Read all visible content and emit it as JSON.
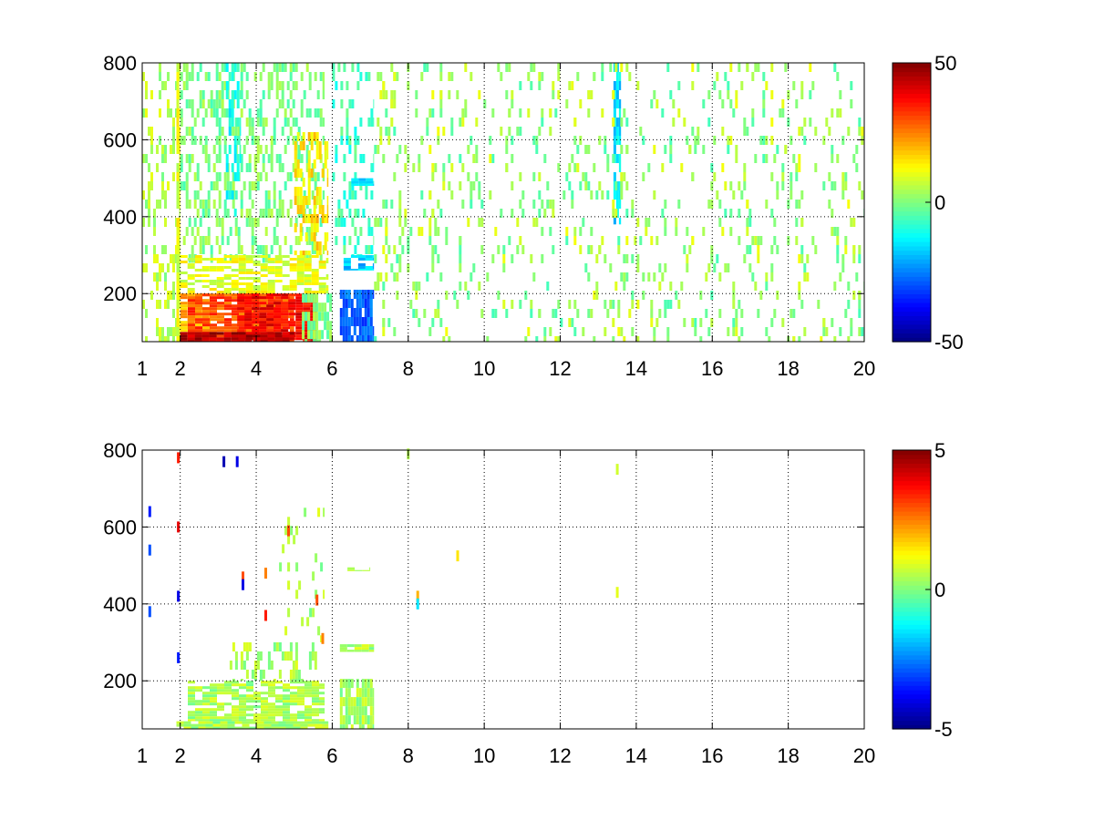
{
  "chart_data": [
    {
      "type": "heatmap",
      "title": "",
      "xlabel": "",
      "ylabel": "",
      "xlim": [
        1,
        20
      ],
      "ylim": [
        75,
        800
      ],
      "x_ticks": [
        1,
        2,
        4,
        6,
        8,
        10,
        12,
        14,
        16,
        18,
        20
      ],
      "y_ticks": [
        200,
        400,
        600,
        800
      ],
      "grid": true,
      "grid_style": "dotted",
      "colormap": "jet",
      "color_limits": [
        -50,
        50
      ],
      "colorbar_ticks": [
        -50,
        0,
        50
      ],
      "colorbar_position": "right",
      "background": "#ffffff",
      "regions": [
        {
          "x": [
            1.0,
            1.9
          ],
          "y": [
            75,
            800
          ],
          "value": 5,
          "density": 0.25,
          "stripe": "vertical"
        },
        {
          "x": [
            1.9,
            2.0
          ],
          "y": [
            75,
            800
          ],
          "value": 10,
          "density": 0.9,
          "stripe": "vertical"
        },
        {
          "x": [
            2.0,
            5.8
          ],
          "y": [
            280,
            800
          ],
          "value": 0,
          "density": 0.35,
          "stripe": "vertical"
        },
        {
          "x": [
            3.2,
            3.6
          ],
          "y": [
            400,
            800
          ],
          "value": -10,
          "density": 0.45,
          "stripe": "vertical"
        },
        {
          "x": [
            5.0,
            5.9
          ],
          "y": [
            300,
            620
          ],
          "value": 15,
          "density": 0.45,
          "stripe": "vertical"
        },
        {
          "x": [
            2.0,
            5.9
          ],
          "y": [
            200,
            300
          ],
          "value": 10,
          "density": 0.6,
          "stripe": "horizontal"
        },
        {
          "x": [
            2.0,
            2.8
          ],
          "y": [
            75,
            200
          ],
          "value": 20,
          "density": 0.8,
          "stripe": "horizontal"
        },
        {
          "x": [
            2.2,
            5.0
          ],
          "y": [
            75,
            200
          ],
          "value": 30,
          "density": 0.85,
          "stripe": "horizontal"
        },
        {
          "x": [
            3.5,
            5.6
          ],
          "y": [
            75,
            200
          ],
          "value": 38,
          "density": 0.8,
          "stripe": "horizontal"
        },
        {
          "x": [
            2.0,
            5.0
          ],
          "y": [
            75,
            100
          ],
          "value": 45,
          "density": 0.9,
          "stripe": "horizontal"
        },
        {
          "x": [
            5.2,
            6.0
          ],
          "y": [
            75,
            200
          ],
          "value": 0,
          "density": 0.7,
          "stripe": "vertical"
        },
        {
          "x": [
            6.2,
            7.1
          ],
          "y": [
            75,
            210
          ],
          "value": -28,
          "density": 0.85,
          "stripe": "vertical"
        },
        {
          "x": [
            6.3,
            7.1
          ],
          "y": [
            260,
            300
          ],
          "value": -18,
          "density": 0.8,
          "stripe": "horizontal"
        },
        {
          "x": [
            6.0,
            7.1
          ],
          "y": [
            300,
            800
          ],
          "value": -6,
          "density": 0.25,
          "stripe": "vertical"
        },
        {
          "x": [
            6.5,
            7.1
          ],
          "y": [
            480,
            500
          ],
          "value": -14,
          "density": 0.8,
          "stripe": "horizontal"
        },
        {
          "x": [
            13.4,
            13.6
          ],
          "y": [
            380,
            800
          ],
          "value": -15,
          "density": 0.7,
          "stripe": "vertical"
        },
        {
          "x": [
            7.1,
            20.0
          ],
          "y": [
            75,
            800
          ],
          "value": 0,
          "density": 0.1,
          "stripe": "vertical"
        },
        {
          "x": [
            7.1,
            20.0
          ],
          "y": [
            75,
            800
          ],
          "value": 6,
          "density": 0.05,
          "stripe": "vertical"
        }
      ]
    },
    {
      "type": "heatmap",
      "title": "",
      "xlabel": "",
      "ylabel": "",
      "xlim": [
        1,
        20
      ],
      "ylim": [
        75,
        800
      ],
      "x_ticks": [
        1,
        2,
        4,
        6,
        8,
        10,
        12,
        14,
        16,
        18,
        20
      ],
      "y_ticks": [
        200,
        400,
        600,
        800
      ],
      "grid": true,
      "grid_style": "dotted",
      "colormap": "jet",
      "color_limits": [
        -5,
        5
      ],
      "colorbar_ticks": [
        -5,
        0,
        5
      ],
      "colorbar_position": "right",
      "background": "#ffffff",
      "regions": [
        {
          "x": [
            1.9,
            5.9
          ],
          "y": [
            75,
            95
          ],
          "value": 0.4,
          "density": 0.85,
          "stripe": "horizontal"
        },
        {
          "x": [
            2.2,
            5.8
          ],
          "y": [
            95,
            200
          ],
          "value": 0.4,
          "density": 0.7,
          "stripe": "horizontal"
        },
        {
          "x": [
            3.3,
            5.6
          ],
          "y": [
            200,
            300
          ],
          "value": 0.4,
          "density": 0.35,
          "stripe": "vertical"
        },
        {
          "x": [
            4.6,
            5.8
          ],
          "y": [
            300,
            650
          ],
          "value": 0.4,
          "density": 0.15,
          "stripe": "vertical"
        },
        {
          "x": [
            6.2,
            7.1
          ],
          "y": [
            75,
            205
          ],
          "value": 0.4,
          "density": 0.85,
          "stripe": "vertical"
        },
        {
          "x": [
            6.2,
            7.1
          ],
          "y": [
            275,
            295
          ],
          "value": 0.4,
          "density": 0.85,
          "stripe": "horizontal"
        },
        {
          "x": [
            6.4,
            7.0
          ],
          "y": [
            485,
            495
          ],
          "value": 0.4,
          "density": 0.7,
          "stripe": "horizontal"
        }
      ],
      "points": [
        {
          "x": 1.95,
          "y": 780,
          "value": 3.5
        },
        {
          "x": 1.95,
          "y": 600,
          "value": 4.0
        },
        {
          "x": 1.95,
          "y": 420,
          "value": -4.0
        },
        {
          "x": 1.95,
          "y": 260,
          "value": -3.5
        },
        {
          "x": 1.2,
          "y": 640,
          "value": -3.5
        },
        {
          "x": 1.2,
          "y": 540,
          "value": -3.0
        },
        {
          "x": 1.2,
          "y": 380,
          "value": -3.0
        },
        {
          "x": 3.15,
          "y": 770,
          "value": -4.5
        },
        {
          "x": 3.5,
          "y": 770,
          "value": -4.0
        },
        {
          "x": 3.65,
          "y": 470,
          "value": 3.0
        },
        {
          "x": 3.65,
          "y": 450,
          "value": -4.0
        },
        {
          "x": 4.25,
          "y": 480,
          "value": 2.5
        },
        {
          "x": 4.25,
          "y": 370,
          "value": 3.5
        },
        {
          "x": 4.85,
          "y": 590,
          "value": 3.0
        },
        {
          "x": 5.75,
          "y": 310,
          "value": 2.5
        },
        {
          "x": 5.6,
          "y": 410,
          "value": 3.0
        },
        {
          "x": 8.25,
          "y": 420,
          "value": 2.0
        },
        {
          "x": 8.25,
          "y": 400,
          "value": -1.5
        },
        {
          "x": 13.5,
          "y": 750,
          "value": 0.8
        },
        {
          "x": 13.5,
          "y": 430,
          "value": 1.0
        },
        {
          "x": 9.3,
          "y": 525,
          "value": 1.5
        },
        {
          "x": 8.0,
          "y": 790,
          "value": 0.5
        }
      ]
    }
  ]
}
